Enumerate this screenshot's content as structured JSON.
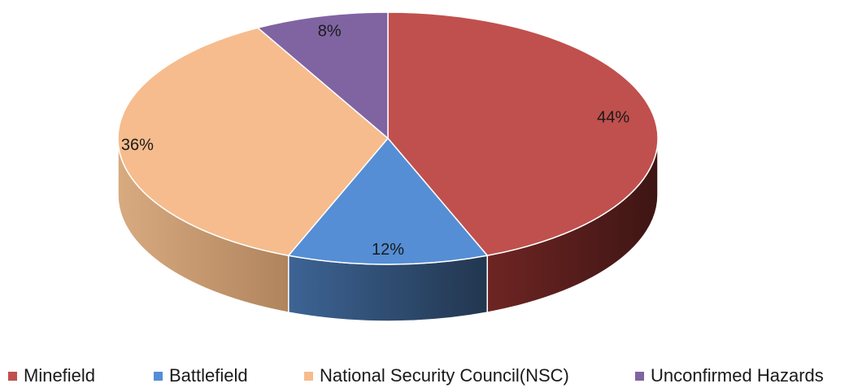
{
  "chart_data": {
    "type": "pie",
    "style": "3d",
    "categories": [
      "Minefield",
      "Battlefield",
      "National Security Council(NSC)",
      "Unconfirmed Hazards"
    ],
    "values": [
      44,
      12,
      36,
      8
    ],
    "labels": [
      "44%",
      "12%",
      "36%",
      "8%"
    ],
    "colors": [
      "#c0504d",
      "#558ed5",
      "#f6bc8d",
      "#8064a2"
    ],
    "legend_position": "bottom",
    "title": ""
  }
}
